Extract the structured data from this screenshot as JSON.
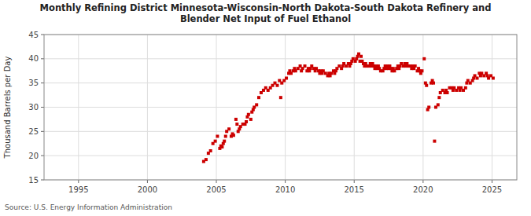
{
  "chart_data": {
    "type": "scatter",
    "title": "Monthly Refining District Minnesota-Wisconsin-North Dakota-South Dakota Refinery and\nBlender Net Input of Fuel Ethanol",
    "ylabel": "Thousand Barrels per Day",
    "source": "Source: U.S. Energy Information Administration",
    "color": "#cc0000",
    "marker": "square",
    "grid": true,
    "xlim": [
      1992.5,
      2026.8
    ],
    "ylim": [
      15,
      45
    ],
    "xticks": [
      1995,
      2000,
      2005,
      2010,
      2015,
      2020,
      2025
    ],
    "yticks": [
      15,
      20,
      25,
      30,
      35,
      40,
      45
    ],
    "x": [
      2004.08,
      2004.25,
      2004.42,
      2004.58,
      2004.75,
      2004.92,
      2005.08,
      2005.25,
      2005.33,
      2005.42,
      2005.5,
      2005.58,
      2005.67,
      2005.75,
      2005.92,
      2006.08,
      2006.17,
      2006.25,
      2006.42,
      2006.5,
      2006.58,
      2006.67,
      2006.75,
      2006.92,
      2007.08,
      2007.17,
      2007.25,
      2007.33,
      2007.5,
      2007.58,
      2007.67,
      2007.75,
      2007.92,
      2008.08,
      2008.25,
      2008.42,
      2008.58,
      2008.75,
      2008.92,
      2009.08,
      2009.25,
      2009.42,
      2009.58,
      2009.67,
      2009.75,
      2009.92,
      2010.08,
      2010.25,
      2010.33,
      2010.42,
      2010.58,
      2010.67,
      2010.75,
      2010.92,
      2011.08,
      2011.17,
      2011.25,
      2011.42,
      2011.58,
      2011.67,
      2011.75,
      2011.83,
      2011.92,
      2012.08,
      2012.17,
      2012.25,
      2012.42,
      2012.5,
      2012.58,
      2012.67,
      2012.75,
      2012.92,
      2013.08,
      2013.17,
      2013.25,
      2013.33,
      2013.5,
      2013.58,
      2013.67,
      2013.75,
      2013.92,
      2014.08,
      2014.17,
      2014.25,
      2014.42,
      2014.58,
      2014.67,
      2014.75,
      2014.83,
      2014.92,
      2015.08,
      2015.17,
      2015.25,
      2015.33,
      2015.42,
      2015.5,
      2015.58,
      2015.67,
      2015.75,
      2015.83,
      2015.92,
      2016.08,
      2016.17,
      2016.25,
      2016.33,
      2016.42,
      2016.5,
      2016.58,
      2016.67,
      2016.75,
      2016.83,
      2016.92,
      2017.08,
      2017.17,
      2017.25,
      2017.33,
      2017.42,
      2017.5,
      2017.58,
      2017.67,
      2017.75,
      2017.83,
      2017.92,
      2018.08,
      2018.17,
      2018.25,
      2018.33,
      2018.42,
      2018.58,
      2018.67,
      2018.75,
      2018.83,
      2018.92,
      2019.08,
      2019.17,
      2019.25,
      2019.33,
      2019.42,
      2019.58,
      2019.67,
      2019.75,
      2019.83,
      2019.92,
      2020.08,
      2020.17,
      2020.25,
      2020.33,
      2020.42,
      2020.58,
      2020.67,
      2020.75,
      2020.83,
      2020.92,
      2021.08,
      2021.17,
      2021.25,
      2021.42,
      2021.58,
      2021.67,
      2021.75,
      2021.92,
      2022.08,
      2022.17,
      2022.25,
      2022.42,
      2022.58,
      2022.67,
      2022.75,
      2022.92,
      2023.08,
      2023.17,
      2023.25,
      2023.42,
      2023.58,
      2023.67,
      2023.75,
      2023.92,
      2024.08,
      2024.17,
      2024.25,
      2024.42,
      2024.58,
      2024.67,
      2024.75,
      2024.92,
      2025.08
    ],
    "values": [
      18.8,
      19.2,
      20.5,
      21.0,
      22.5,
      23.0,
      24.0,
      21.5,
      22.0,
      21.8,
      22.5,
      23.0,
      24.0,
      25.0,
      25.5,
      24.0,
      24.5,
      24.2,
      27.5,
      26.5,
      25.0,
      25.5,
      26.0,
      26.5,
      26.5,
      27.0,
      28.0,
      28.5,
      27.5,
      29.0,
      29.5,
      30.0,
      30.5,
      32.0,
      33.0,
      33.5,
      34.0,
      33.5,
      34.0,
      34.5,
      35.0,
      34.5,
      35.5,
      32.0,
      35.0,
      35.5,
      36.0,
      37.0,
      37.5,
      37.0,
      37.5,
      38.0,
      37.5,
      38.0,
      38.5,
      37.5,
      38.0,
      38.5,
      37.5,
      38.0,
      37.5,
      38.0,
      38.5,
      38.0,
      37.5,
      38.0,
      37.5,
      37.0,
      37.5,
      37.0,
      37.5,
      37.0,
      36.5,
      37.0,
      36.5,
      37.0,
      37.5,
      37.0,
      37.5,
      38.0,
      38.5,
      38.0,
      38.5,
      39.0,
      38.5,
      39.0,
      38.5,
      39.0,
      39.5,
      40.0,
      39.5,
      40.0,
      40.5,
      41.0,
      39.5,
      40.5,
      39.5,
      39.0,
      38.5,
      39.0,
      38.5,
      38.5,
      39.0,
      38.5,
      39.0,
      38.5,
      38.0,
      38.5,
      38.0,
      38.5,
      38.0,
      37.5,
      37.5,
      38.0,
      38.5,
      38.0,
      38.5,
      38.0,
      38.5,
      38.0,
      37.5,
      38.0,
      37.5,
      38.0,
      38.5,
      38.0,
      38.5,
      39.0,
      38.5,
      39.0,
      38.5,
      39.0,
      38.5,
      38.5,
      38.0,
      38.5,
      38.0,
      38.5,
      37.5,
      38.0,
      37.5,
      37.0,
      37.5,
      40.0,
      35.0,
      34.5,
      29.5,
      30.0,
      35.0,
      35.5,
      35.0,
      23.0,
      30.0,
      30.5,
      32.0,
      33.0,
      33.5,
      33.0,
      33.5,
      33.0,
      34.0,
      34.0,
      33.5,
      34.0,
      33.5,
      34.0,
      33.5,
      34.0,
      33.5,
      34.0,
      35.0,
      35.5,
      35.0,
      35.5,
      36.0,
      36.5,
      36.0,
      37.0,
      36.5,
      37.0,
      36.5,
      37.0,
      36.5,
      36.0,
      36.5,
      36.0
    ]
  }
}
